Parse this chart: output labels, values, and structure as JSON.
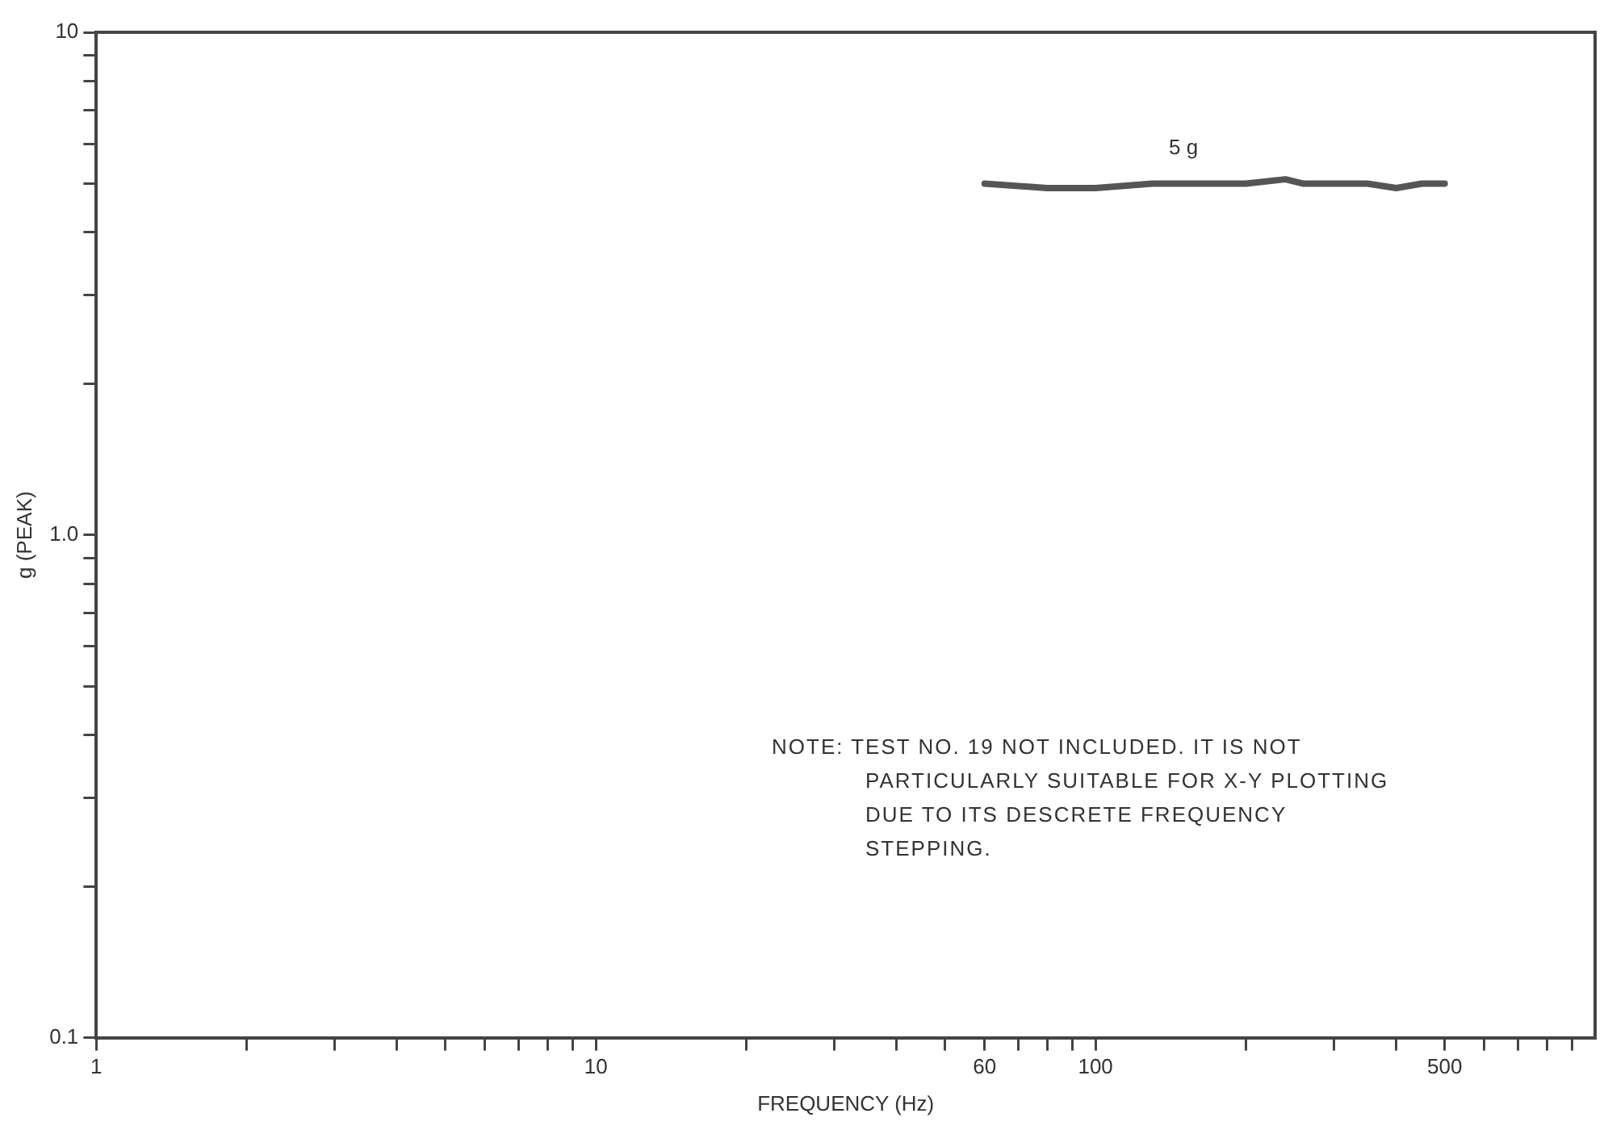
{
  "chart_data": {
    "type": "line",
    "xlabel": "FREQUENCY (Hz)",
    "ylabel": "g (PEAK)",
    "log": "xy",
    "grid": false,
    "marker": "none",
    "line_style": "solid",
    "xlim": [
      1,
      1000
    ],
    "ylim": [
      0.1,
      10
    ],
    "xticks": [
      {
        "value": 1,
        "label": "1"
      },
      {
        "value": 2,
        "label": null
      },
      {
        "value": 3,
        "label": null
      },
      {
        "value": 4,
        "label": null
      },
      {
        "value": 5,
        "label": null
      },
      {
        "value": 6,
        "label": null
      },
      {
        "value": 7,
        "label": null
      },
      {
        "value": 8,
        "label": null
      },
      {
        "value": 9,
        "label": null
      },
      10,
      {
        "value": 20,
        "label": null
      },
      {
        "value": 30,
        "label": null
      },
      {
        "value": 40,
        "label": null
      },
      {
        "value": 50,
        "label": null
      },
      60,
      {
        "value": 70,
        "label": null
      },
      {
        "value": 80,
        "label": null
      },
      {
        "value": 90,
        "label": null
      },
      100,
      {
        "value": 200,
        "label": null
      },
      {
        "value": 300,
        "label": null
      },
      {
        "value": 400,
        "label": null
      },
      500,
      {
        "value": 600,
        "label": null
      },
      {
        "value": 700,
        "label": null
      },
      {
        "value": 800,
        "label": null
      },
      {
        "value": 900,
        "label": null
      }
    ],
    "yticks": [
      {
        "value": 0.1,
        "label": "0.1"
      },
      {
        "value": 0.2,
        "label": null
      },
      {
        "value": 0.3,
        "label": null
      },
      {
        "value": 0.4,
        "label": null
      },
      {
        "value": 0.5,
        "label": null
      },
      {
        "value": 0.6,
        "label": null
      },
      {
        "value": 0.7,
        "label": null
      },
      {
        "value": 0.8,
        "label": null
      },
      {
        "value": 0.9,
        "label": null
      },
      {
        "value": 1,
        "label": "1.0"
      },
      {
        "value": 2,
        "label": null
      },
      {
        "value": 3,
        "label": null
      },
      {
        "value": 4,
        "label": null
      },
      {
        "value": 5,
        "label": null
      },
      {
        "value": 6,
        "label": null
      },
      {
        "value": 7,
        "label": null
      },
      {
        "value": 8,
        "label": null
      },
      {
        "value": 9,
        "label": null
      },
      {
        "value": 10,
        "label": "10"
      }
    ],
    "series": [
      {
        "color": "#555555",
        "x": [
          60,
          80,
          100,
          130,
          160,
          200,
          240,
          260,
          300,
          350,
          400,
          450,
          500
        ],
        "values": [
          5,
          4.9,
          4.9,
          5,
          5,
          5,
          5.1,
          5,
          5,
          5,
          4.9,
          5,
          5
        ]
      }
    ],
    "annotations": [
      {
        "text": "5 g",
        "x": 150,
        "y": 5
      },
      "NOTE: TEST NO. 19 NOT INCLUDED. IT IS NOT PARTICULARLY SUITABLE FOR X-Y PLOTTING DUE TO ITS DESCRETE FREQUENCY STEPPING."
    ]
  }
}
